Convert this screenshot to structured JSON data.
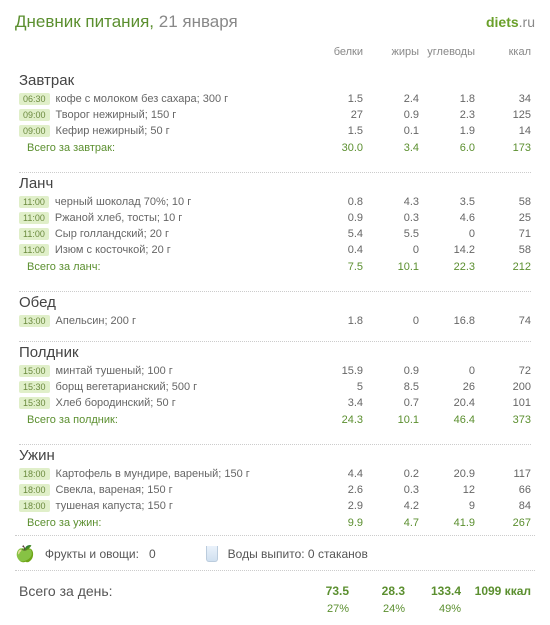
{
  "brand": {
    "prefix": "diets",
    "suffix": ".ru"
  },
  "title": {
    "label": "Дневник питания,",
    "date": "21 января"
  },
  "columns": {
    "protein": "белки",
    "fat": "жиры",
    "carbs": "углеводы",
    "kcal": "ккал"
  },
  "meals": [
    {
      "name": "Завтрак",
      "total_label": "Всего за завтрак:",
      "items": [
        {
          "time": "06:30",
          "food": "кофе с молоком без сахара; 300 г",
          "p": "1.5",
          "f": "2.4",
          "c": "1.8",
          "k": "34"
        },
        {
          "time": "09:00",
          "food": "Творог нежирный; 150 г",
          "p": "27",
          "f": "0.9",
          "c": "2.3",
          "k": "125"
        },
        {
          "time": "09:00",
          "food": "Кефир нежирный; 50 г",
          "p": "1.5",
          "f": "0.1",
          "c": "1.9",
          "k": "14"
        }
      ],
      "totals": {
        "p": "30.0",
        "f": "3.4",
        "c": "6.0",
        "k": "173"
      }
    },
    {
      "name": "Ланч",
      "total_label": "Всего за ланч:",
      "items": [
        {
          "time": "11:00",
          "food": "черный шоколад 70%; 10 г",
          "p": "0.8",
          "f": "4.3",
          "c": "3.5",
          "k": "58"
        },
        {
          "time": "11:00",
          "food": "Ржаной хлеб, тосты; 10 г",
          "p": "0.9",
          "f": "0.3",
          "c": "4.6",
          "k": "25"
        },
        {
          "time": "11:00",
          "food": "Сыр голландский; 20 г",
          "p": "5.4",
          "f": "5.5",
          "c": "0",
          "k": "71"
        },
        {
          "time": "11:00",
          "food": "Изюм с косточкой; 20 г",
          "p": "0.4",
          "f": "0",
          "c": "14.2",
          "k": "58"
        }
      ],
      "totals": {
        "p": "7.5",
        "f": "10.1",
        "c": "22.3",
        "k": "212"
      }
    },
    {
      "name": "Обед",
      "total_label": "",
      "items": [
        {
          "time": "13:00",
          "food": "Апельсин; 200 г",
          "p": "1.8",
          "f": "0",
          "c": "16.8",
          "k": "74"
        }
      ],
      "totals": null
    },
    {
      "name": "Полдник",
      "total_label": "Всего за полдник:",
      "items": [
        {
          "time": "15:00",
          "food": "минтай тушеный; 100 г",
          "p": "15.9",
          "f": "0.9",
          "c": "0",
          "k": "72"
        },
        {
          "time": "15:30",
          "food": "борщ вегетарианский; 500 г",
          "p": "5",
          "f": "8.5",
          "c": "26",
          "k": "200"
        },
        {
          "time": "15:30",
          "food": "Хлеб бородинский; 50 г",
          "p": "3.4",
          "f": "0.7",
          "c": "20.4",
          "k": "101"
        }
      ],
      "totals": {
        "p": "24.3",
        "f": "10.1",
        "c": "46.4",
        "k": "373"
      }
    },
    {
      "name": "Ужин",
      "total_label": "Всего за ужин:",
      "items": [
        {
          "time": "18:00",
          "food": "Картофель в мундире, вареный; 150 г",
          "p": "4.4",
          "f": "0.2",
          "c": "20.9",
          "k": "117"
        },
        {
          "time": "18:00",
          "food": "Свекла, вареная; 150 г",
          "p": "2.6",
          "f": "0.3",
          "c": "12",
          "k": "66"
        },
        {
          "time": "18:00",
          "food": "тушеная капуста; 150 г",
          "p": "2.9",
          "f": "4.2",
          "c": "9",
          "k": "84"
        }
      ],
      "totals": {
        "p": "9.9",
        "f": "4.7",
        "c": "41.9",
        "k": "267"
      }
    }
  ],
  "summary": {
    "fruits_label": "Фрукты и овощи:",
    "fruits_value": "0",
    "water_label": "Воды выпито: 0 стаканов"
  },
  "day_total": {
    "label": "Всего за день:",
    "p": "73.5",
    "f": "28.3",
    "c": "133.4",
    "k": "1099 ккал",
    "pp": "27%",
    "fp": "24%",
    "cp": "49%"
  },
  "colors": {
    "accent": "#5b8f2f",
    "badge_bg": "#e0efc9",
    "text": "#555555",
    "muted": "#888888",
    "divider": "#cccccc"
  }
}
